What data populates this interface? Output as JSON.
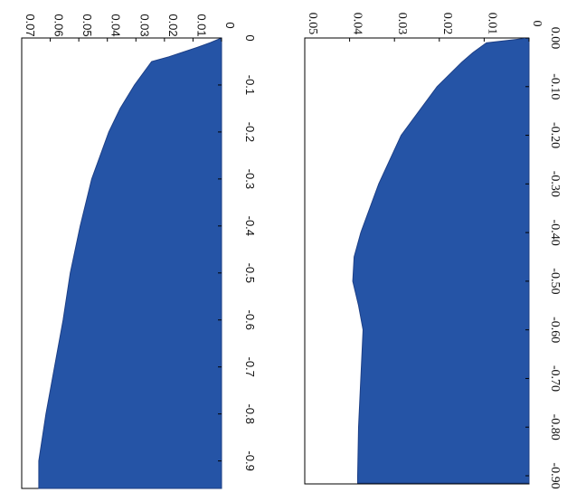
{
  "chart_data": [
    {
      "type": "area",
      "orientation": "rotated-90-clockwise",
      "x": [
        0,
        -0.01,
        -0.03,
        -0.05,
        -0.1,
        -0.2,
        -0.3,
        -0.4,
        -0.45,
        -0.5,
        -0.55,
        -0.6,
        -0.7,
        -0.8,
        -0.9
      ],
      "values": [
        0,
        0.0095,
        0.0125,
        0.015,
        0.0205,
        0.0285,
        0.0335,
        0.0375,
        0.039,
        0.0393,
        0.038,
        0.037,
        0.0375,
        0.038,
        0.0382
      ],
      "xlim": [
        0,
        -0.9
      ],
      "ylim": [
        0,
        0.05
      ],
      "x_ticks": [
        "0.00",
        "-0.10",
        "-0.20",
        "-0.30",
        "-0.40",
        "-0.50",
        "-0.60",
        "-0.70",
        "-0.80",
        "-0.90"
      ],
      "y_ticks": [
        "0",
        "0.01",
        "0.02",
        "0.03",
        "0.04",
        "0.05"
      ],
      "fill_color": "#2554a6",
      "grid": false,
      "title": "",
      "xlabel": "",
      "ylabel": ""
    },
    {
      "type": "area",
      "orientation": "rotated-90-clockwise",
      "x": [
        0,
        -0.01,
        -0.02,
        -0.03,
        -0.04,
        -0.05,
        -0.075,
        -0.1,
        -0.15,
        -0.2,
        -0.3,
        -0.4,
        -0.5,
        -0.6,
        -0.7,
        -0.8,
        -0.9
      ],
      "values": [
        0,
        0.004,
        0.0085,
        0.0135,
        0.0185,
        0.0245,
        0.0275,
        0.0305,
        0.0355,
        0.0395,
        0.0455,
        0.0495,
        0.053,
        0.0555,
        0.0585,
        0.0615,
        0.064
      ],
      "xlim": [
        0,
        -0.92
      ],
      "ylim": [
        0,
        0.07
      ],
      "x_ticks": [
        "0",
        "-0.1",
        "-0.2",
        "-0.3",
        "-0.4",
        "-0.5",
        "-0.6",
        "-0.7",
        "-0.8",
        "-0.9"
      ],
      "y_ticks": [
        "0",
        "0.01",
        "0.02",
        "0.03",
        "0.04",
        "0.05",
        "0.06",
        "0.07"
      ],
      "fill_color": "#2554a6",
      "grid": false,
      "title": "",
      "xlabel": "",
      "ylabel": ""
    }
  ]
}
